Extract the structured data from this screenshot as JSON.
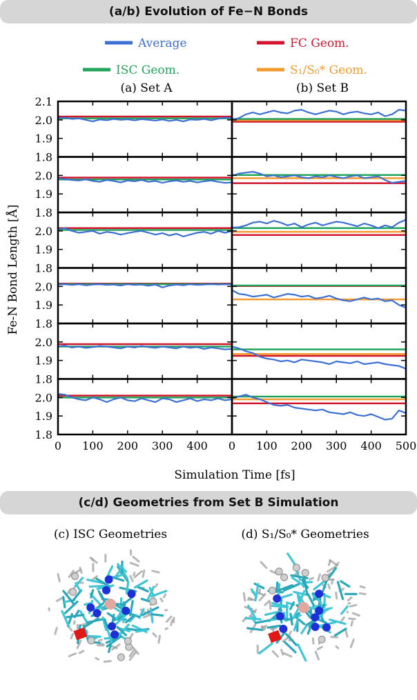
{
  "section_ab_title": "(a/b) Evolution of Fe−N Bonds",
  "section_cd_title": "(c/d) Geometries from Set B Simulation",
  "colors": {
    "average": "#3b6fd4",
    "fc": "#d0142c",
    "isc": "#22a45a",
    "s1s0": "#f29a2e",
    "banner": "#d6d6d6"
  },
  "legend": [
    {
      "key": "average",
      "label": "Average"
    },
    {
      "key": "fc",
      "label": "FC Geom."
    },
    {
      "key": "isc",
      "label": "ISC Geom."
    },
    {
      "key": "s1s0",
      "label": "S₁/S₀* Geom."
    }
  ],
  "panels": [
    {
      "label": "(a) Set A"
    },
    {
      "label": "(b) Set B"
    }
  ],
  "geometry_panels": [
    {
      "label": "(c) ISC Geometries"
    },
    {
      "label": "(d) S₁/S₀* Geometries"
    }
  ],
  "chart_data": {
    "type": "line",
    "xlabel": "Simulation Time [fs]",
    "ylabel": "Fe-N Bond Length [Å]",
    "xlim": [
      0,
      500
    ],
    "ylim": [
      1.8,
      2.1
    ],
    "x_ticks": [
      0,
      100,
      200,
      300,
      400,
      500
    ],
    "y_ticks_top": [
      "2.1",
      "2.0",
      "1.9",
      "1.8"
    ],
    "y_ticks": [
      "2.0",
      "1.9",
      "1.8"
    ],
    "x": [
      0,
      20,
      40,
      60,
      80,
      100,
      120,
      140,
      160,
      180,
      200,
      220,
      240,
      260,
      280,
      300,
      320,
      340,
      360,
      380,
      400,
      420,
      440,
      460,
      480,
      500
    ],
    "setA": [
      {
        "fc": 2.018,
        "isc": 2.008,
        "average": [
          2.01,
          2.012,
          2.005,
          2.008,
          2.0,
          1.992,
          2.002,
          1.998,
          2.005,
          2.0,
          2.003,
          1.997,
          2.004,
          2.0,
          1.996,
          2.002,
          1.994,
          2.0,
          1.992,
          2.002,
          2.0,
          2.005,
          1.998,
          2.006,
          2.012,
          2.01
        ]
      },
      {
        "fc": 1.988,
        "isc": 1.978,
        "average": [
          1.985,
          1.98,
          1.975,
          1.972,
          1.978,
          1.97,
          1.965,
          1.975,
          1.97,
          1.962,
          1.972,
          1.968,
          1.975,
          1.965,
          1.97,
          1.96,
          1.968,
          1.972,
          1.965,
          1.97,
          1.962,
          1.968,
          1.972,
          1.965,
          1.96,
          1.962
        ]
      },
      {
        "fc": 2.015,
        "isc": 2.005,
        "average": [
          2.01,
          2.015,
          2.0,
          1.99,
          1.995,
          2.0,
          1.985,
          1.995,
          1.99,
          1.98,
          1.988,
          1.995,
          2.0,
          1.99,
          1.98,
          1.988,
          1.975,
          1.985,
          1.97,
          1.98,
          1.99,
          1.995,
          1.985,
          2.0,
          1.99,
          2.0
        ]
      },
      {
        "fc": 2.015,
        "isc": 2.012,
        "average": [
          2.01,
          2.012,
          2.008,
          2.012,
          2.006,
          2.01,
          2.012,
          2.008,
          2.01,
          2.005,
          2.012,
          2.008,
          2.01,
          2.004,
          2.01,
          1.995,
          2.005,
          2.01,
          2.006,
          2.012,
          2.008,
          2.01,
          2.014,
          2.01,
          2.012,
          2.01
        ]
      },
      {
        "fc": 1.988,
        "isc": 1.975,
        "average": [
          1.975,
          1.98,
          1.97,
          1.975,
          1.968,
          1.972,
          1.978,
          1.975,
          1.97,
          1.965,
          1.975,
          1.97,
          1.978,
          1.972,
          1.968,
          1.975,
          1.97,
          1.965,
          1.975,
          1.968,
          1.972,
          1.962,
          1.97,
          1.965,
          1.96,
          1.962
        ]
      },
      {
        "fc": 2.01,
        "isc": 2.0,
        "average": [
          2.02,
          2.015,
          2.0,
          1.99,
          1.985,
          2.0,
          1.99,
          1.975,
          1.99,
          2.0,
          1.985,
          1.98,
          1.995,
          1.985,
          1.975,
          1.995,
          1.99,
          1.975,
          1.985,
          1.995,
          1.98,
          1.99,
          1.985,
          1.995,
          1.985,
          1.99
        ]
      }
    ],
    "setB": [
      {
        "fc": 1.99,
        "isc": 2.005,
        "s1s0": 1.998,
        "average": [
          2.0,
          2.01,
          2.03,
          2.04,
          2.03,
          2.04,
          2.05,
          2.04,
          2.035,
          2.05,
          2.055,
          2.04,
          2.03,
          2.04,
          2.05,
          2.045,
          2.03,
          2.04,
          2.045,
          2.035,
          2.03,
          2.04,
          2.02,
          2.03,
          2.055,
          2.05
        ]
      },
      {
        "fc": 1.958,
        "isc": 2.002,
        "s1s0": 1.985,
        "average": [
          1.998,
          2.01,
          2.015,
          2.02,
          2.01,
          1.995,
          2.0,
          1.99,
          1.995,
          2.0,
          1.99,
          1.985,
          1.995,
          1.99,
          2.0,
          1.992,
          1.985,
          1.995,
          2.0,
          1.985,
          1.99,
          1.995,
          1.975,
          1.96,
          1.965,
          1.97
        ]
      },
      {
        "fc": 1.978,
        "isc": 2.015,
        "s1s0": 1.995,
        "average": [
          2.018,
          2.02,
          2.03,
          2.045,
          2.05,
          2.04,
          2.055,
          2.045,
          2.03,
          2.04,
          2.02,
          2.035,
          2.045,
          2.03,
          2.04,
          2.05,
          2.045,
          2.035,
          2.025,
          2.04,
          2.03,
          2.015,
          2.03,
          2.02,
          2.045,
          2.06
        ]
      },
      {
        "fc": 2.002,
        "isc": 2.005,
        "s1s0": 1.93,
        "average": [
          1.98,
          1.96,
          1.955,
          1.945,
          1.95,
          1.955,
          1.94,
          1.95,
          1.96,
          1.955,
          1.945,
          1.95,
          1.935,
          1.94,
          1.95,
          1.935,
          1.925,
          1.92,
          1.93,
          1.94,
          1.93,
          1.935,
          1.92,
          1.925,
          1.9,
          1.885
        ]
      },
      {
        "fc": 1.925,
        "isc": 1.96,
        "s1s0": 1.935,
        "average": [
          1.975,
          1.965,
          1.95,
          1.94,
          1.92,
          1.91,
          1.905,
          1.895,
          1.9,
          1.89,
          1.905,
          1.9,
          1.895,
          1.89,
          1.88,
          1.895,
          1.89,
          1.885,
          1.895,
          1.88,
          1.885,
          1.89,
          1.88,
          1.875,
          1.87,
          1.855
        ]
      },
      {
        "fc": 1.968,
        "isc": 2.005,
        "s1s0": 1.99,
        "average": [
          1.995,
          2.005,
          2.015,
          2.0,
          1.99,
          1.975,
          1.96,
          1.955,
          1.96,
          1.945,
          1.94,
          1.935,
          1.93,
          1.935,
          1.92,
          1.915,
          1.91,
          1.92,
          1.905,
          1.9,
          1.91,
          1.895,
          1.88,
          1.885,
          1.93,
          1.915
        ]
      }
    ]
  }
}
